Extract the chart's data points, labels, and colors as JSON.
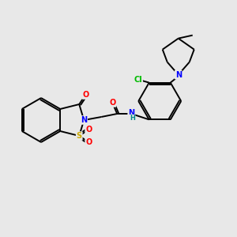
{
  "background_color": "#e8e8e8",
  "bond_color": "#000000",
  "atom_colors": {
    "O": "#ff0000",
    "N": "#0000ff",
    "S": "#ccaa00",
    "Cl": "#00bb00",
    "C": "#000000",
    "H": "#008888"
  },
  "figsize": [
    3.0,
    3.0
  ],
  "dpi": 100,
  "lw": 1.4
}
